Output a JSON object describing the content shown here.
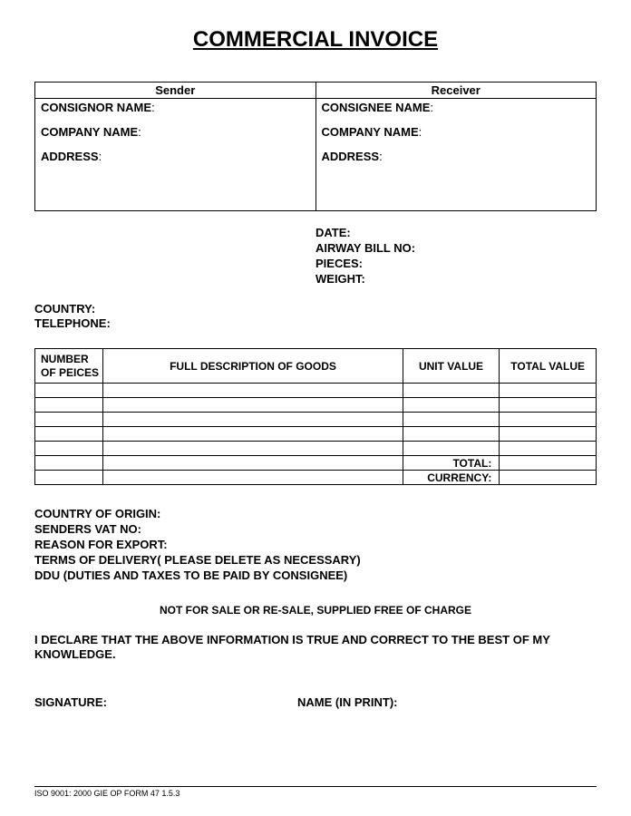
{
  "title": "COMMERCIAL INVOICE",
  "party_table": {
    "sender_header": "Sender",
    "receiver_header": "Receiver",
    "sender": {
      "name_label": "CONSIGNOR NAME",
      "company_label": "COMPANY NAME",
      "address_label": "ADDRESS"
    },
    "receiver": {
      "name_label": "CONSIGNEE NAME",
      "company_label": "COMPANY NAME",
      "address_label": "ADDRESS"
    }
  },
  "meta": {
    "date_label": "DATE:",
    "airway_label": "AIRWAY BILL NO:",
    "pieces_label": "PIECES:",
    "weight_label": "WEIGHT:"
  },
  "contact": {
    "country_label": "COUNTRY:",
    "telephone_label": "TELEPHONE:"
  },
  "goods_table": {
    "col_number": "NUMBER OF PEICES",
    "col_desc": "FULL DESCRIPTION OF GOODS",
    "col_unit": "UNIT VALUE",
    "col_total": "TOTAL VALUE",
    "total_label": "TOTAL:",
    "currency_label": "CURRENCY:",
    "body_row_count": 5
  },
  "bottom": {
    "origin_label": "COUNTRY OF ORIGIN:",
    "vat_label": "SENDERS VAT NO:",
    "reason_label": "REASON FOR EXPORT:",
    "terms_label": "TERMS OF DELIVERY( PLEASE DELETE AS NECESSARY)",
    "ddu_label": "DDU (DUTIES AND TAXES TO BE PAID BY CONSIGNEE)"
  },
  "note": "NOT FOR SALE OR RE-SALE, SUPPLIED FREE OF CHARGE",
  "declaration": "I DECLARE THAT THE ABOVE INFORMATION IS TRUE AND CORRECT TO THE BEST OF MY KNOWLEDGE.",
  "signature": {
    "sig_label": "SIGNATURE:",
    "name_label": "NAME (IN PRINT):"
  },
  "footer": "ISO 9001: 2000 GIE OP FORM 47 1.5.3"
}
